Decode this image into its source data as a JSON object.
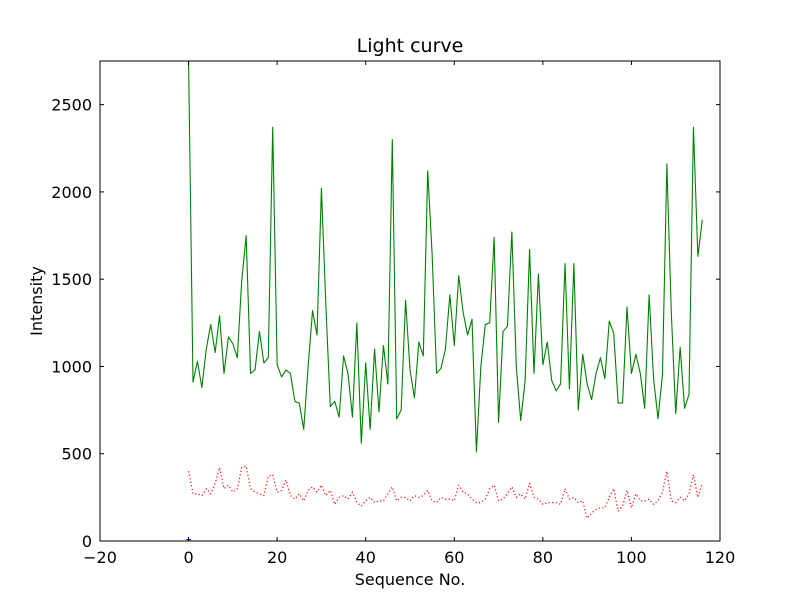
{
  "chart_data": {
    "type": "line",
    "title": "Light curve",
    "xlabel": "Sequence No.",
    "ylabel": "Intensity",
    "xlim": [
      -20,
      120
    ],
    "ylim": [
      0,
      2750
    ],
    "xticks": [
      -20,
      0,
      20,
      40,
      60,
      80,
      100,
      120
    ],
    "xtick_labels": [
      "−20",
      "0",
      "20",
      "40",
      "60",
      "80",
      "100",
      "120"
    ],
    "yticks": [
      0,
      500,
      1000,
      1500,
      2000,
      2500
    ],
    "ytick_labels": [
      "0",
      "500",
      "1000",
      "1500",
      "2000",
      "2500"
    ],
    "grid": false,
    "legend": false,
    "series": [
      {
        "color": "#008000",
        "style": "solid",
        "x": [
          0,
          1,
          2,
          3,
          4,
          5,
          6,
          7,
          8,
          9,
          10,
          11,
          12,
          13,
          14,
          15,
          16,
          17,
          18,
          19,
          20,
          21,
          22,
          23,
          24,
          25,
          26,
          27,
          28,
          29,
          30,
          31,
          32,
          33,
          34,
          35,
          36,
          37,
          38,
          39,
          40,
          41,
          42,
          43,
          44,
          45,
          46,
          47,
          48,
          49,
          50,
          51,
          52,
          53,
          54,
          55,
          56,
          57,
          58,
          59,
          60,
          61,
          62,
          63,
          64,
          65,
          66,
          67,
          68,
          69,
          70,
          71,
          72,
          73,
          74,
          75,
          76,
          77,
          78,
          79,
          80,
          81,
          82,
          83,
          84,
          85,
          86,
          87,
          88,
          89,
          90,
          91,
          92,
          93,
          94,
          95,
          96,
          97,
          98,
          99,
          100,
          101,
          102,
          103,
          104,
          105,
          106,
          107,
          108,
          109,
          110,
          111,
          112,
          113,
          114,
          115,
          116
        ],
        "y": [
          2750,
          910,
          1030,
          880,
          1100,
          1240,
          1080,
          1290,
          960,
          1170,
          1130,
          1050,
          1490,
          1750,
          960,
          980,
          1200,
          1020,
          1050,
          2370,
          1010,
          940,
          980,
          960,
          800,
          790,
          640,
          1000,
          1320,
          1180,
          2020,
          1350,
          770,
          800,
          710,
          1060,
          960,
          710,
          1250,
          560,
          1020,
          640,
          1100,
          740,
          1120,
          900,
          2300,
          700,
          750,
          1380,
          980,
          820,
          1140,
          1060,
          2120,
          1640,
          960,
          990,
          1100,
          1410,
          1120,
          1520,
          1310,
          1180,
          1270,
          510,
          1000,
          1240,
          1250,
          1740,
          680,
          1200,
          1230,
          1770,
          1000,
          690,
          920,
          1670,
          960,
          1530,
          1010,
          1140,
          920,
          860,
          900,
          1590,
          870,
          1590,
          750,
          1070,
          900,
          810,
          960,
          1050,
          930,
          1260,
          1190,
          790,
          790,
          1340,
          960,
          1070,
          960,
          760,
          1410,
          930,
          700,
          950,
          2160,
          1310,
          730,
          1110,
          760,
          840,
          2370,
          1630,
          1840
        ]
      },
      {
        "color": "#ff0000",
        "style": "dotted",
        "x": [
          0,
          1,
          2,
          3,
          4,
          5,
          6,
          7,
          8,
          9,
          10,
          11,
          12,
          13,
          14,
          15,
          16,
          17,
          18,
          19,
          20,
          21,
          22,
          23,
          24,
          25,
          26,
          27,
          28,
          29,
          30,
          31,
          32,
          33,
          34,
          35,
          36,
          37,
          38,
          39,
          40,
          41,
          42,
          43,
          44,
          45,
          46,
          47,
          48,
          49,
          50,
          51,
          52,
          53,
          54,
          55,
          56,
          57,
          58,
          59,
          60,
          61,
          62,
          63,
          64,
          65,
          66,
          67,
          68,
          69,
          70,
          71,
          72,
          73,
          74,
          75,
          76,
          77,
          78,
          79,
          80,
          81,
          82,
          83,
          84,
          85,
          86,
          87,
          88,
          89,
          90,
          91,
          92,
          93,
          94,
          95,
          96,
          97,
          98,
          99,
          100,
          101,
          102,
          103,
          104,
          105,
          106,
          107,
          108,
          109,
          110,
          111,
          112,
          113,
          114,
          115,
          116
        ],
        "y": [
          400,
          270,
          270,
          260,
          300,
          270,
          330,
          420,
          300,
          320,
          280,
          300,
          420,
          430,
          300,
          280,
          270,
          260,
          370,
          380,
          280,
          290,
          350,
          260,
          240,
          270,
          230,
          290,
          310,
          280,
          320,
          260,
          290,
          210,
          250,
          260,
          240,
          280,
          220,
          200,
          230,
          250,
          220,
          230,
          230,
          270,
          310,
          230,
          250,
          250,
          230,
          260,
          250,
          260,
          290,
          230,
          220,
          250,
          240,
          240,
          230,
          320,
          280,
          270,
          240,
          220,
          220,
          240,
          300,
          320,
          230,
          240,
          270,
          310,
          250,
          270,
          240,
          330,
          250,
          240,
          210,
          220,
          220,
          220,
          210,
          300,
          240,
          250,
          220,
          230,
          130,
          160,
          180,
          190,
          190,
          250,
          300,
          170,
          200,
          290,
          190,
          270,
          230,
          230,
          240,
          210,
          230,
          280,
          400,
          230,
          220,
          250,
          230,
          270,
          380,
          250,
          330
        ]
      },
      {
        "color": "#0000ff",
        "style": "solid",
        "x": [
          -0.5,
          0,
          0.5
        ],
        "y": [
          8,
          8,
          8
        ]
      }
    ]
  }
}
